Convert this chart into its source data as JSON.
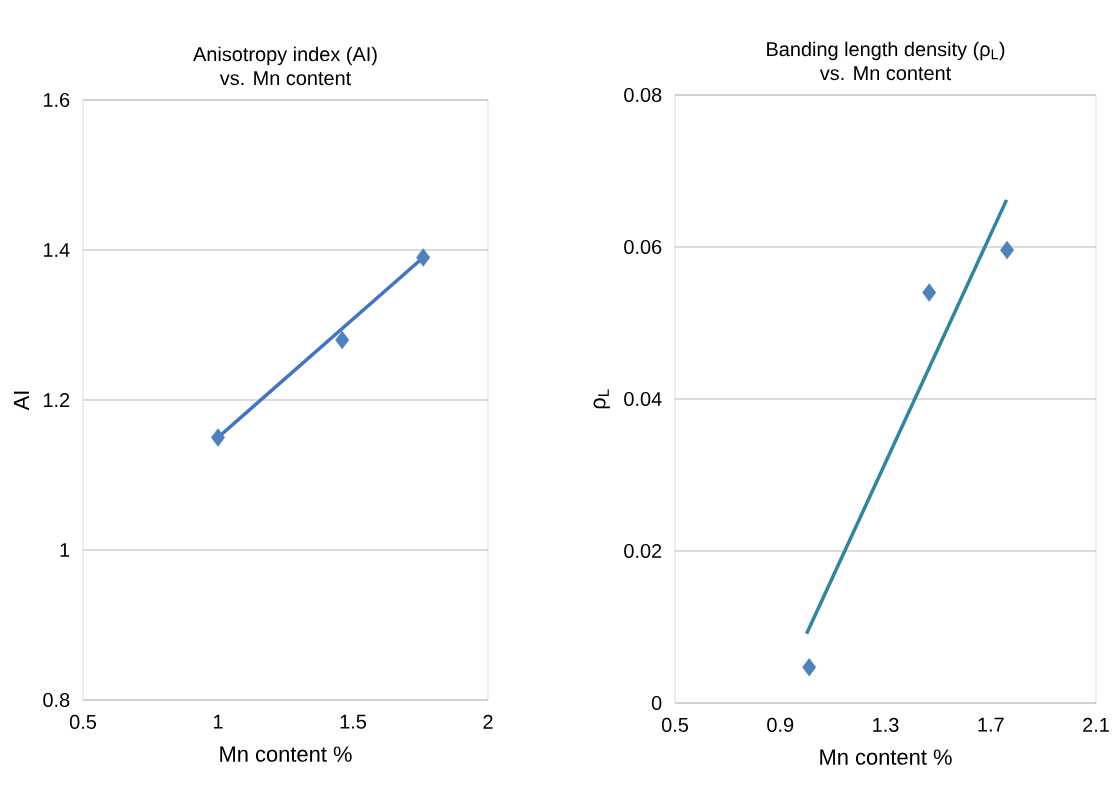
{
  "chart_data": [
    {
      "type": "scatter",
      "title": "Anisotropy index (AI)",
      "subtitle": "vs. Mn content",
      "xlabel": "Mn  content %",
      "ylabel": "AI",
      "xlim": [
        0.5,
        2
      ],
      "xticks": [
        0.5,
        1,
        1.5,
        2
      ],
      "ylim": [
        0.8,
        1.6
      ],
      "yticks": [
        0.8,
        1,
        1.2,
        1.4,
        1.6
      ],
      "grid": "y",
      "series": [
        {
          "type": "line",
          "color": "#4472c4",
          "marker": "none",
          "x": [
            1.0,
            1.76
          ],
          "values": [
            1.15,
            1.39
          ]
        },
        {
          "color": "#4f81bd",
          "marker": "diamond",
          "x": [
            1.0,
            1.46,
            1.76
          ],
          "values": [
            1.15,
            1.28,
            1.39
          ]
        }
      ]
    },
    {
      "type": "scatter",
      "title": "Banding length density (ρ$_{L}$)",
      "subtitle": "vs. Mn content",
      "xlabel": "Mn content %",
      "ylabel": "ρ$_{L}$",
      "xlim": [
        0.5,
        2.1
      ],
      "xticks": [
        0.5,
        0.9,
        1.3,
        1.7,
        2.1
      ],
      "ylim": [
        0,
        0.08
      ],
      "yticks": [
        0,
        0.02,
        0.04,
        0.06,
        0.08
      ],
      "grid": "y",
      "series": [
        {
          "type": "line",
          "color": "#31859c",
          "marker": "none",
          "x": [
            1.0,
            1.76
          ],
          "values": [
            0.0091,
            0.0662
          ]
        },
        {
          "color": "#4f81bd",
          "marker": "diamond",
          "x": [
            1.01,
            1.466,
            1.762
          ],
          "values": [
            0.0047,
            0.054,
            0.0596
          ]
        }
      ]
    }
  ]
}
